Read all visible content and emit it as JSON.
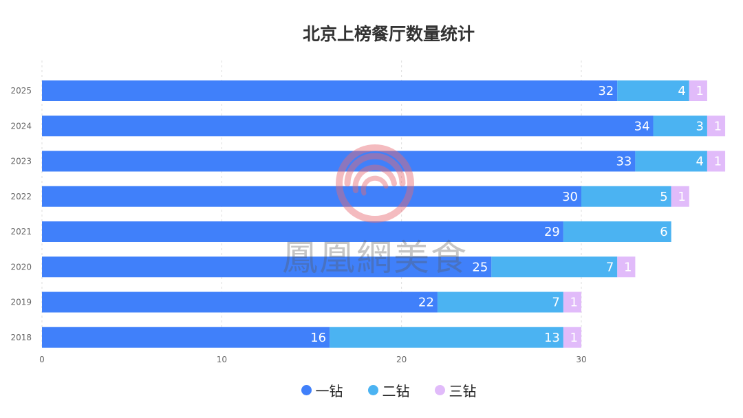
{
  "chart_data": {
    "type": "bar",
    "orientation": "horizontal",
    "stacked": true,
    "title": "北京上榜餐厅数量统计",
    "categories": [
      "2025",
      "2024",
      "2023",
      "2022",
      "2021",
      "2020",
      "2019",
      "2018"
    ],
    "series": [
      {
        "name": "一钻",
        "color": "#4080fa",
        "values": [
          32,
          34,
          33,
          30,
          29,
          25,
          22,
          16
        ]
      },
      {
        "name": "二钻",
        "color": "#4bb3f2",
        "values": [
          4,
          3,
          4,
          5,
          6,
          7,
          7,
          13
        ]
      },
      {
        "name": "三钻",
        "color": "#e1bbfa",
        "values": [
          1,
          1,
          1,
          1,
          0,
          1,
          1,
          1
        ]
      }
    ],
    "xticks": [
      0,
      10,
      20,
      30
    ],
    "xlim": [
      0,
      38
    ],
    "grid": true,
    "legend_position": "bottom"
  },
  "watermark": {
    "text": "鳳凰網美食"
  }
}
